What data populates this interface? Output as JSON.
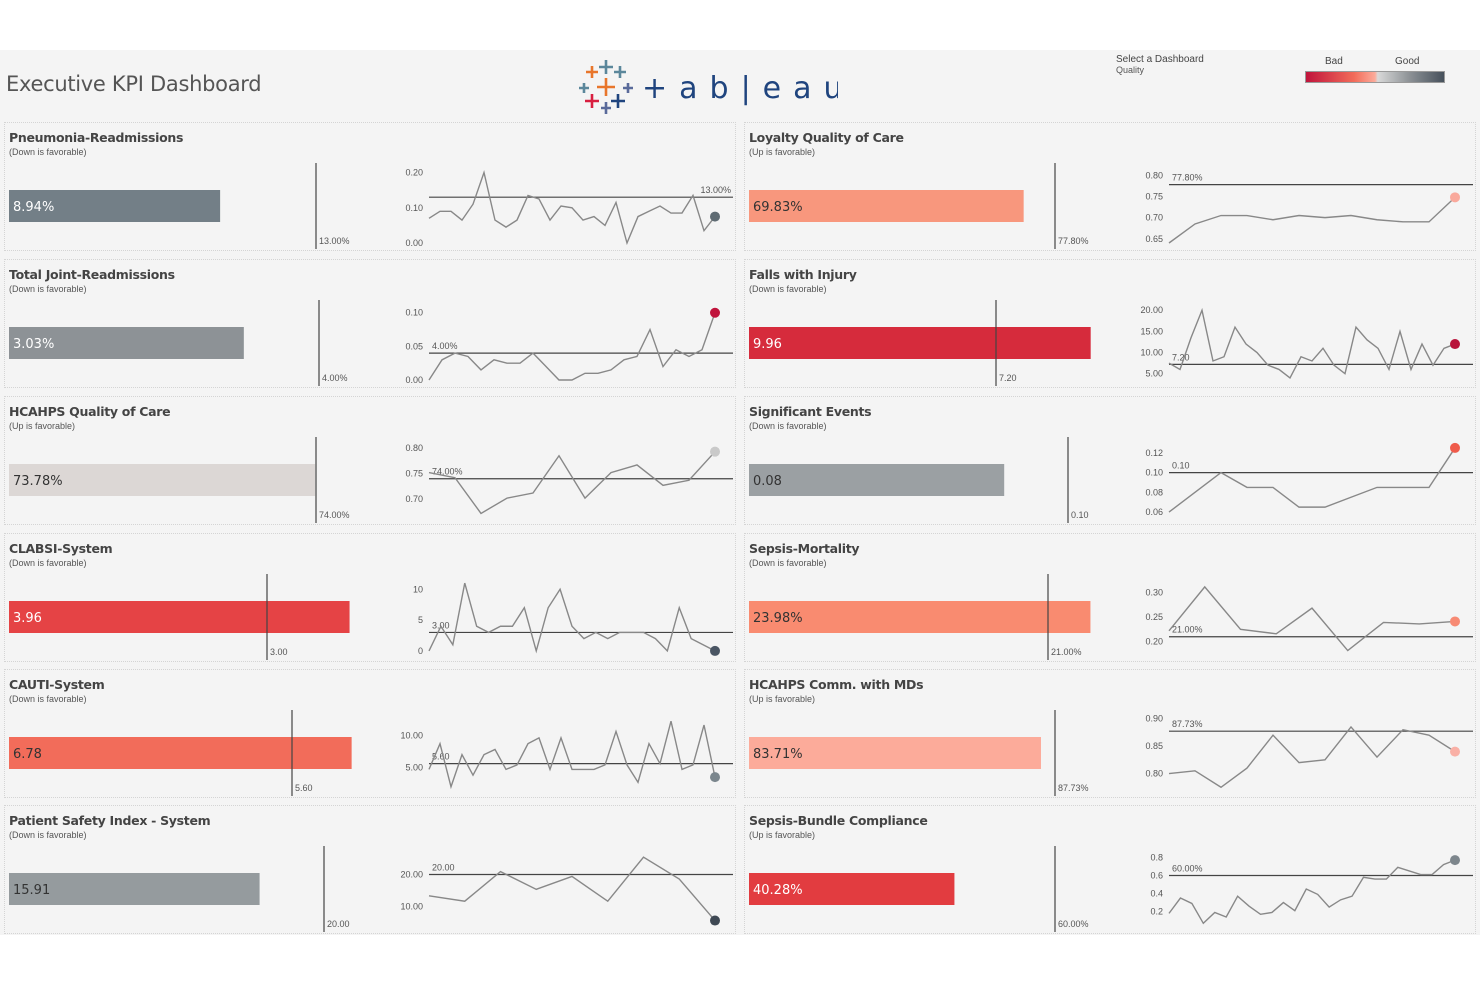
{
  "header": {
    "title": "Executive KPI Dashboard",
    "logo_text": "tableau",
    "selector_label": "Select a Dashboard",
    "selector_value": "Quality"
  },
  "legend": {
    "bad": "Bad",
    "good": "Good",
    "colors": [
      "#c0143c",
      "#f26c5a",
      "#fcab9a",
      "#d9d9d9",
      "#8d9296",
      "#46505b"
    ]
  },
  "chart_data": [
    {
      "type": "bar+line",
      "title": "Pneumonia-Readmissions",
      "subtitle": "(Down is favorable)",
      "value_label": "8.94%",
      "value": 8.94,
      "target": 13,
      "target_label": "13.00%",
      "bar_color": "#737f87",
      "text_color": "#ffffff",
      "trend": {
        "yticks": [
          "0.00",
          "0.10",
          "0.20"
        ],
        "ytick_values": [
          0,
          0.1,
          0.2
        ],
        "ylim": [
          0,
          0.21
        ],
        "ref": 0.13,
        "ref_label": "13.00%",
        "ref_label_pos": "right",
        "values": [
          0.07,
          0.09,
          0.09,
          0.065,
          0.11,
          0.2,
          0.065,
          0.045,
          0.065,
          0.135,
          0.125,
          0.065,
          0.105,
          0.1,
          0.065,
          0.075,
          0.05,
          0.115,
          0.0,
          0.075,
          0.09,
          0.105,
          0.085,
          0.085,
          0.135,
          0.035,
          0.075
        ],
        "end_color": "#5f6b73"
      }
    },
    {
      "type": "bar+line",
      "title": "Loyalty Quality of Care",
      "subtitle": "(Up is favorable)",
      "value_label": "69.83%",
      "value": 69.83,
      "target": 77.8,
      "target_label": "77.80%",
      "bar_color": "#f8977d",
      "text_color": "#333333",
      "trend": {
        "yticks": [
          "0.65",
          "0.70",
          "0.75",
          "0.80"
        ],
        "ytick_values": [
          0.65,
          0.7,
          0.75,
          0.8
        ],
        "ylim": [
          0.64,
          0.815
        ],
        "ref": 0.778,
        "ref_label": "77.80%",
        "ref_label_pos": "left",
        "values": [
          0.64,
          0.685,
          0.705,
          0.705,
          0.695,
          0.705,
          0.7,
          0.705,
          0.695,
          0.69,
          0.69,
          0.748
        ],
        "end_color": "#f9a99c"
      }
    },
    {
      "type": "bar+line",
      "title": "Total Joint-Readmissions",
      "subtitle": "(Down is favorable)",
      "value_label": "3.03%",
      "value": 3.03,
      "target": 4,
      "target_label": "4.00%",
      "bar_color": "#8d9296",
      "text_color": "#ffffff",
      "trend": {
        "yticks": [
          "0.00",
          "0.05",
          "0.10"
        ],
        "ytick_values": [
          0,
          0.05,
          0.1
        ],
        "ylim": [
          0,
          0.11
        ],
        "ref": 0.04,
        "ref_label": "4.00%",
        "ref_label_pos": "left",
        "values": [
          0.0,
          0.03,
          0.04,
          0.035,
          0.015,
          0.03,
          0.025,
          0.025,
          0.04,
          0.02,
          0.0,
          0.0,
          0.01,
          0.01,
          0.015,
          0.03,
          0.035,
          0.075,
          0.02,
          0.045,
          0.035,
          0.045,
          0.1
        ],
        "end_color": "#c0143c"
      }
    },
    {
      "type": "bar+line",
      "title": "Falls with Injury",
      "subtitle": "(Down is favorable)",
      "value_label": "9.96",
      "value": 9.96,
      "target": 7.2,
      "target_label": "7.20",
      "bar_color": "#d62b3c",
      "text_color": "#ffffff",
      "trend": {
        "yticks": [
          "5.00",
          "10.00",
          "15.00",
          "20.00"
        ],
        "ytick_values": [
          5,
          10,
          15,
          20
        ],
        "ylim": [
          3.5,
          21
        ],
        "ref": 7.2,
        "ref_label": "7.20",
        "ref_label_pos": "left",
        "values": [
          7.5,
          6,
          13.5,
          20,
          8,
          9,
          16,
          12,
          10,
          7,
          6,
          4,
          9,
          8,
          11,
          7,
          5,
          16,
          13,
          11,
          6,
          15,
          6,
          12,
          7,
          11,
          12
        ],
        "end_color": "#b8133a"
      }
    },
    {
      "type": "bar+line",
      "title": "HCAHPS Quality of Care",
      "subtitle": "(Up is favorable)",
      "value_label": "73.78%",
      "value": 73.78,
      "target": 74,
      "target_label": "74.00%",
      "bar_color": "#dcd7d5",
      "text_color": "#333333",
      "trend": {
        "yticks": [
          "0.70",
          "0.75",
          "0.80"
        ],
        "ytick_values": [
          0.7,
          0.75,
          0.8
        ],
        "ylim": [
          0.665,
          0.81
        ],
        "ref": 0.74,
        "ref_label": "74.00%",
        "ref_label_pos": "left",
        "values": [
          0.752,
          0.742,
          0.672,
          0.702,
          0.712,
          0.785,
          0.702,
          0.752,
          0.767,
          0.727,
          0.737,
          0.793
        ],
        "end_color": "#c9c9c9"
      }
    },
    {
      "type": "bar+line",
      "title": "Significant Events",
      "subtitle": "(Down is favorable)",
      "value_label": "0.08",
      "value": 0.08,
      "target": 0.1,
      "target_label": "0.10",
      "bar_color": "#9ba0a3",
      "text_color": "#333333",
      "trend": {
        "yticks": [
          "0.06",
          "0.08",
          "0.10",
          "0.12"
        ],
        "ytick_values": [
          0.06,
          0.08,
          0.1,
          0.12
        ],
        "ylim": [
          0.055,
          0.13
        ],
        "ref": 0.1,
        "ref_label": "0.10",
        "ref_label_pos": "left",
        "values": [
          0.06,
          0.08,
          0.1,
          0.085,
          0.085,
          0.065,
          0.065,
          0.075,
          0.085,
          0.085,
          0.085,
          0.125
        ],
        "end_color": "#ef5b4b"
      }
    },
    {
      "type": "bar+line",
      "title": "CLABSI-System",
      "subtitle": "(Down is favorable)",
      "value_label": "3.96",
      "value": 3.96,
      "target": 3,
      "target_label": "3.00",
      "bar_color": "#e54345",
      "text_color": "#ffffff",
      "trend": {
        "yticks": [
          "0",
          "5",
          "10"
        ],
        "ytick_values": [
          0,
          5,
          10
        ],
        "ylim": [
          -0.5,
          11.5
        ],
        "ref": 3,
        "ref_label": "3.00",
        "ref_label_pos": "left",
        "values": [
          0,
          4,
          1,
          11,
          4,
          3,
          4,
          4,
          7,
          0,
          7,
          10,
          4,
          2,
          3,
          2,
          3,
          3,
          3,
          2,
          0,
          7,
          2,
          1,
          0
        ],
        "end_color": "#4a5563"
      }
    },
    {
      "type": "bar+line",
      "title": "Sepsis-Mortality",
      "subtitle": "(Down is favorable)",
      "value_label": "23.98%",
      "value": 23.98,
      "target": 21,
      "target_label": "21.00%",
      "bar_color": "#f98b70",
      "text_color": "#333333",
      "trend": {
        "yticks": [
          "0.20",
          "0.25",
          "0.30"
        ],
        "ytick_values": [
          0.2,
          0.25,
          0.3
        ],
        "ylim": [
          0.175,
          0.325
        ],
        "ref": 0.21,
        "ref_label": "21.00%",
        "ref_label_pos": "left",
        "values": [
          0.222,
          0.311,
          0.225,
          0.216,
          0.268,
          0.182,
          0.239,
          0.236,
          0.241
        ],
        "end_color": "#f78a74"
      }
    },
    {
      "type": "bar+line",
      "title": "CAUTI-System",
      "subtitle": "(Down is favorable)",
      "value_label": "6.78",
      "value": 6.78,
      "target": 5.6,
      "target_label": "5.60",
      "bar_color": "#f26c5a",
      "text_color": "#333333",
      "trend": {
        "yticks": [
          "5.00",
          "10.00"
        ],
        "ytick_values": [
          5,
          10
        ],
        "ylim": [
          1.5,
          13
        ],
        "ref": 5.6,
        "ref_label": "5.60",
        "ref_label_pos": "left",
        "values": [
          4.7,
          8.7,
          2,
          7,
          3.8,
          7,
          7.8,
          4.7,
          5.4,
          8.7,
          9.6,
          4.7,
          9.6,
          4.7,
          4.7,
          4.7,
          5.4,
          10.6,
          5.4,
          2.7,
          8.7,
          5.6,
          12.2,
          4.7,
          5.4,
          11.6,
          3.5
        ],
        "end_color": "#7b868d"
      }
    },
    {
      "type": "bar+line",
      "title": "HCAHPS Comm. with MDs",
      "subtitle": "(Up is favorable)",
      "value_label": "83.71%",
      "value": 83.71,
      "target": 87.73,
      "target_label": "87.73%",
      "bar_color": "#fcab9a",
      "text_color": "#333333",
      "trend": {
        "yticks": [
          "0.80",
          "0.85",
          "0.90"
        ],
        "ytick_values": [
          0.8,
          0.85,
          0.9
        ],
        "ylim": [
          0.77,
          0.905
        ],
        "ref": 0.8773,
        "ref_label": "87.73%",
        "ref_label_pos": "left",
        "values": [
          0.8,
          0.805,
          0.775,
          0.81,
          0.87,
          0.82,
          0.825,
          0.885,
          0.83,
          0.88,
          0.87,
          0.84
        ],
        "end_color": "#f9b0a6"
      }
    },
    {
      "type": "bar+line",
      "title": "Patient Safety Index - System",
      "subtitle": "(Down is favorable)",
      "value_label": "15.91",
      "value": 15.91,
      "target": 20,
      "target_label": "20.00",
      "bar_color": "#959b9e",
      "text_color": "#333333",
      "trend": {
        "yticks": [
          "10.00",
          "20.00"
        ],
        "ytick_values": [
          10,
          20
        ],
        "ylim": [
          4,
          27
        ],
        "ref": 20,
        "ref_label": "20.00",
        "ref_label_pos": "left",
        "values": [
          13.4,
          11.7,
          20.9,
          15.4,
          19.4,
          11.7,
          25.4,
          18.6,
          5.7
        ],
        "end_color": "#3e4853"
      }
    },
    {
      "type": "bar+line",
      "title": "Sepsis-Bundle Compliance",
      "subtitle": "(Up is favorable)",
      "value_label": "40.28%",
      "value": 40.28,
      "target": 60,
      "target_label": "60.00%",
      "bar_color": "#e23c40",
      "text_color": "#ffffff",
      "trend": {
        "yticks": [
          "0.2",
          "0.4",
          "0.6",
          "0.8"
        ],
        "ytick_values": [
          0.2,
          0.4,
          0.6,
          0.8
        ],
        "ylim": [
          0.04,
          0.86
        ],
        "ref": 0.6,
        "ref_label": "60.00%",
        "ref_label_pos": "left",
        "values": [
          0.18,
          0.35,
          0.29,
          0.07,
          0.19,
          0.14,
          0.37,
          0.26,
          0.17,
          0.19,
          0.3,
          0.21,
          0.45,
          0.39,
          0.25,
          0.33,
          0.37,
          0.58,
          0.56,
          0.56,
          0.69,
          0.65,
          0.61,
          0.61,
          0.72,
          0.77
        ],
        "end_color": "#7d868c"
      }
    }
  ]
}
